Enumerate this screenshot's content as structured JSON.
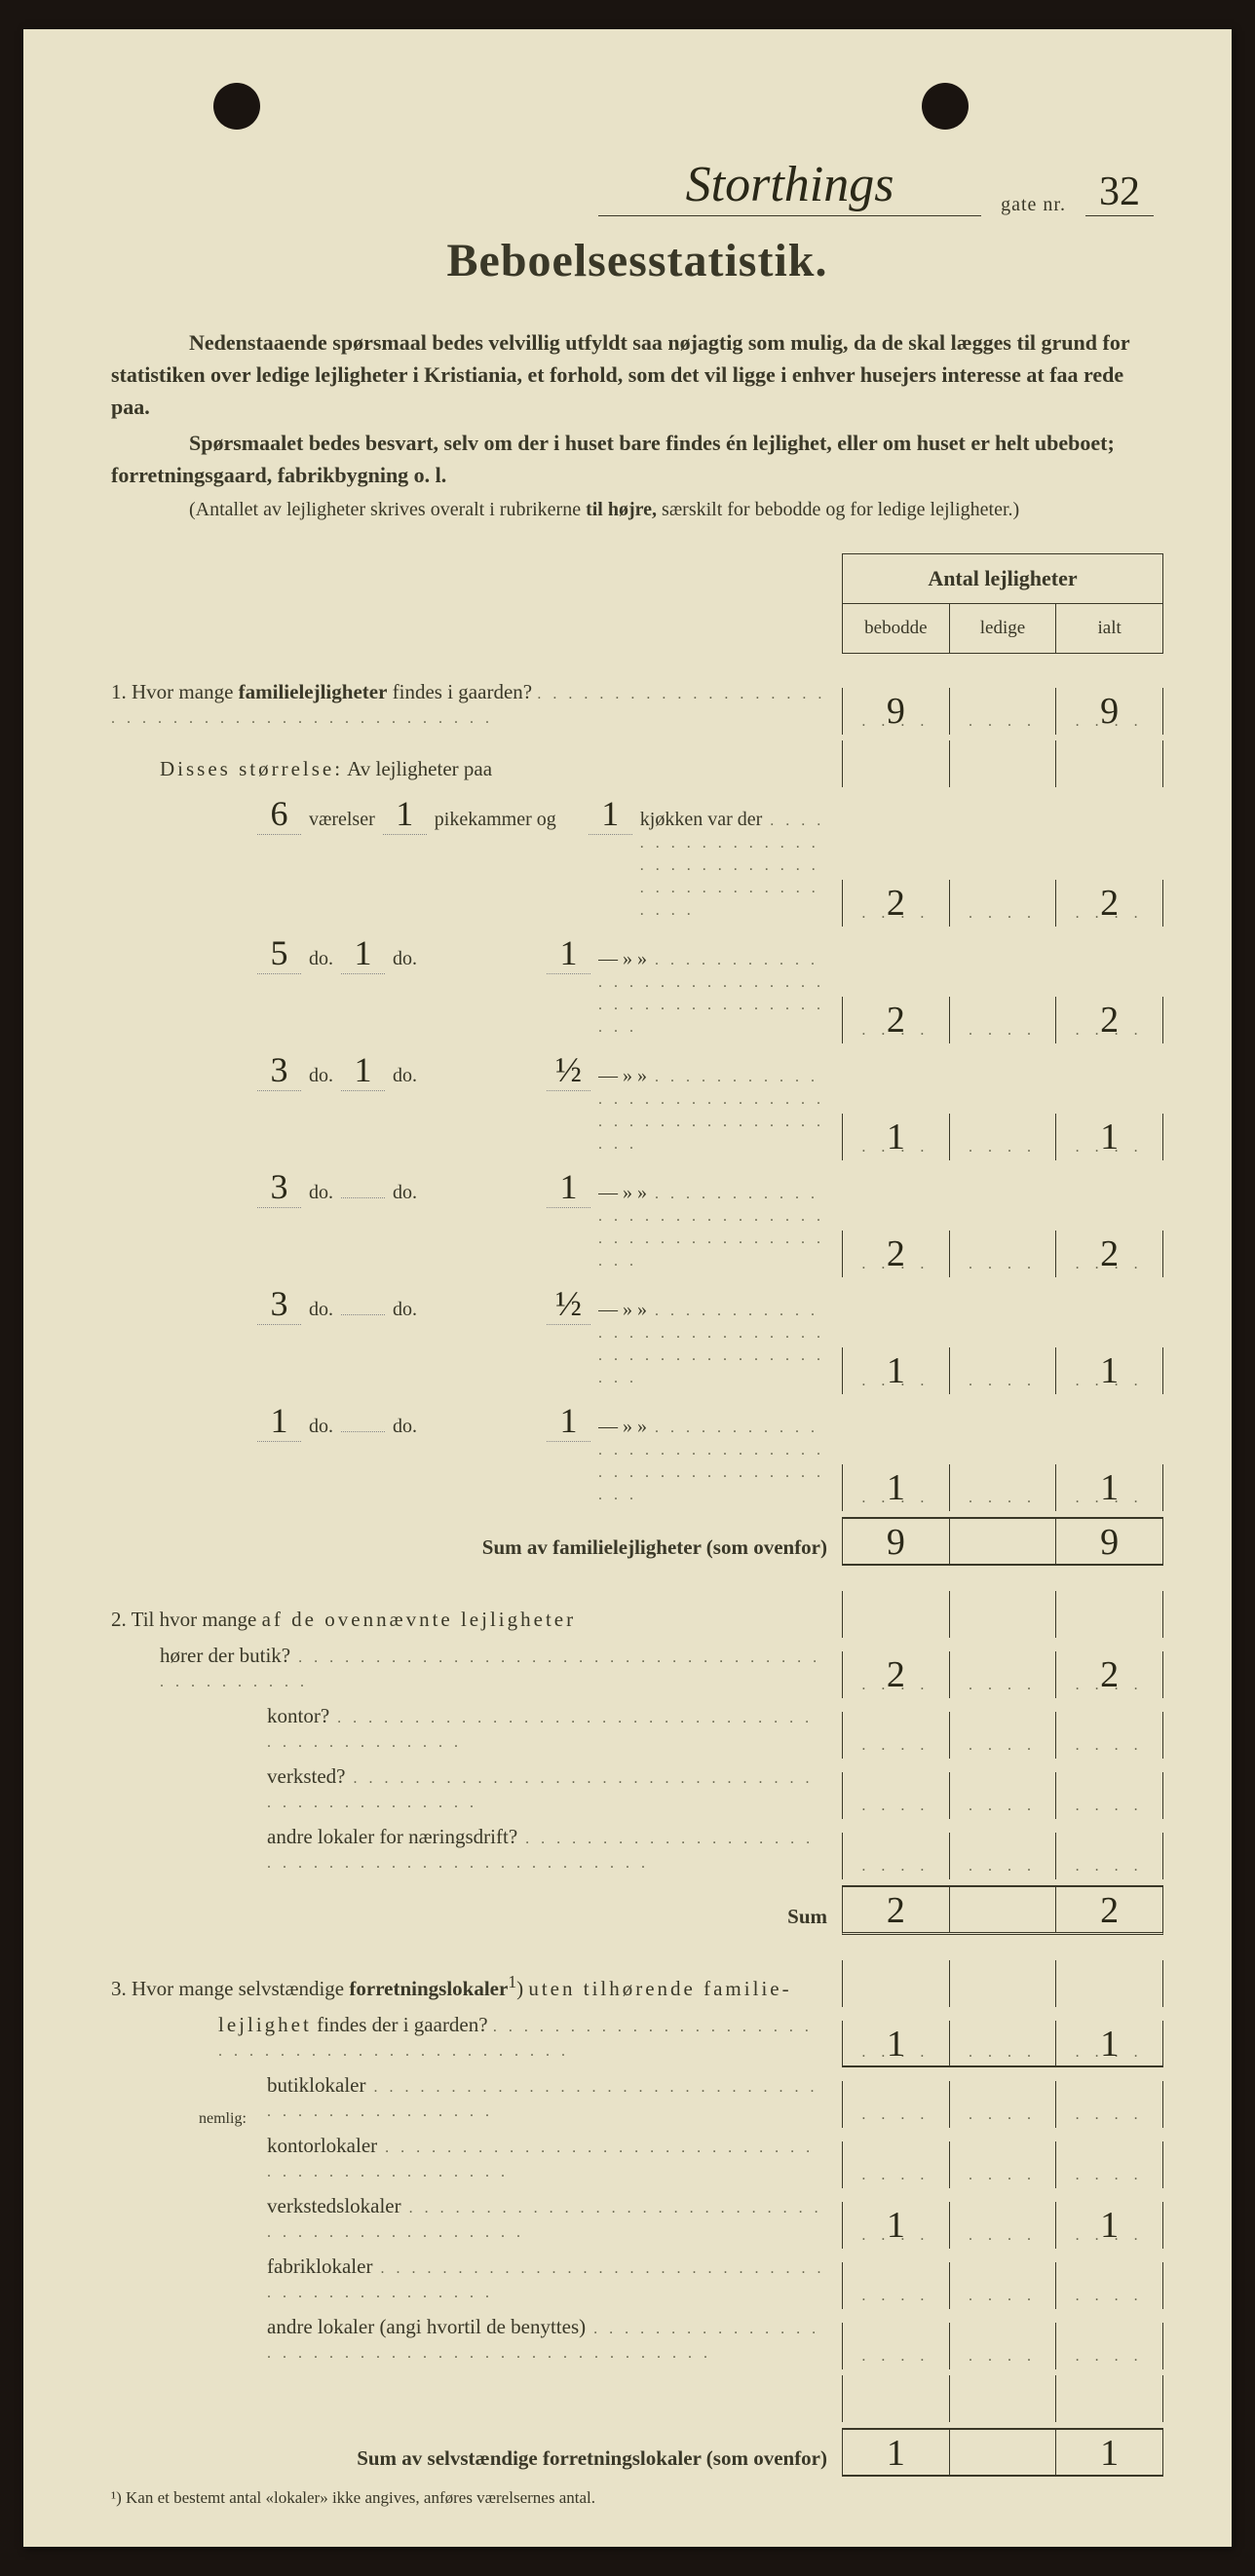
{
  "header": {
    "street_name": "Storthings",
    "gate_label": "gate nr.",
    "gate_nr": "32"
  },
  "title": "Beboelsesstatistik.",
  "intro": {
    "p1a": "Nedenstaaende spørsmaal bedes velvillig utfyldt saa nøjagtig som mulig, da de skal lægges til grund for statistiken over ledige lejligheter i Kristiania, et forhold, som det vil ligge i enhver husejers interesse at faa rede paa.",
    "p2a": "Spørsmaalet bedes besvart, selv om der i huset bare findes én lejlighet, eller om huset er helt ubeboet; forretningsgaard, fabrikbygning o. l.",
    "note": "(Antallet av lejligheter skrives overalt i rubrikerne ",
    "note_bold": "til højre,",
    "note_end": " særskilt for bebodde og for ledige lejligheter.)"
  },
  "table_header": {
    "title": "Antal lejligheter",
    "col1": "bebodde",
    "col2": "ledige",
    "col3": "ialt"
  },
  "q1": {
    "text_a": "1.  Hvor mange ",
    "text_b": "familielejligheter",
    "text_c": " findes i gaarden?",
    "bebodde": "9",
    "ialt": "9",
    "subtitle_a": "Disses ",
    "subtitle_b": "størrelse:",
    "subtitle_c": "  Av lejligheter paa",
    "rows": [
      {
        "v": "6",
        "p": "1",
        "k": "1",
        "label_v": "værelser",
        "label_p": "pikekammer og",
        "label_k": "kjøkken var der",
        "b": "2",
        "i": "2"
      },
      {
        "v": "5",
        "p": "1",
        "k": "1",
        "label_v": "do.",
        "label_p": "do.",
        "label_k": "—    »    »",
        "b": "2",
        "i": "2"
      },
      {
        "v": "3",
        "p": "1",
        "k": "½",
        "label_v": "do.",
        "label_p": "do.",
        "label_k": "—    »    »",
        "b": "1",
        "i": "1"
      },
      {
        "v": "3",
        "p": "",
        "k": "1",
        "label_v": "do.",
        "label_p": "do.",
        "label_k": "—    »    »",
        "b": "2",
        "i": "2"
      },
      {
        "v": "3",
        "p": "",
        "k": "½",
        "label_v": "do.",
        "label_p": "do.",
        "label_k": "—    »    »",
        "b": "1",
        "i": "1"
      },
      {
        "v": "1",
        "p": "",
        "k": "1",
        "label_v": "do.",
        "label_p": "do.",
        "label_k": "—    »    »",
        "b": "1",
        "i": "1"
      }
    ],
    "sum_label": "Sum av familielejligheter",
    "sum_note": "(som ovenfor)",
    "sum_b": "9",
    "sum_i": "9"
  },
  "q2": {
    "text_a": "2.  Til hvor mange ",
    "text_b": "af de ovennævnte lejligheter",
    "rows": [
      {
        "label": "hører der butik?",
        "b": "2",
        "i": "2"
      },
      {
        "label": "kontor?",
        "b": "",
        "i": ""
      },
      {
        "label": "verksted?",
        "b": "",
        "i": ""
      },
      {
        "label": "andre lokaler for næringsdrift?",
        "b": "",
        "i": ""
      }
    ],
    "sum_label": "Sum",
    "sum_b": "2",
    "sum_i": "2"
  },
  "q3": {
    "text_a": "3.  Hvor mange selvstændige ",
    "text_b": "forretningslokaler",
    "text_sup": "1",
    "text_c": ") ",
    "text_d": "uten tilhørende familie-",
    "line2_a": "lejlighet",
    "line2_b": " findes der i gaarden?",
    "main_b": "1",
    "main_i": "1",
    "nemlig": "nemlig:",
    "rows": [
      {
        "label": "butiklokaler",
        "b": "",
        "i": ""
      },
      {
        "label": "kontorlokaler",
        "b": "",
        "i": ""
      },
      {
        "label": "verkstedslokaler",
        "b": "1",
        "i": "1"
      },
      {
        "label": "fabriklokaler",
        "b": "",
        "i": ""
      },
      {
        "label": "andre lokaler (angi hvortil de benyttes)",
        "b": "",
        "i": ""
      }
    ],
    "sum_label": "Sum av selvstændige forretningslokaler",
    "sum_note": "(som ovenfor)",
    "sum_b": "1",
    "sum_i": "1"
  },
  "footnote": "¹) Kan et bestemt antal «lokaler» ikke angives, anføres værelsernes antal."
}
